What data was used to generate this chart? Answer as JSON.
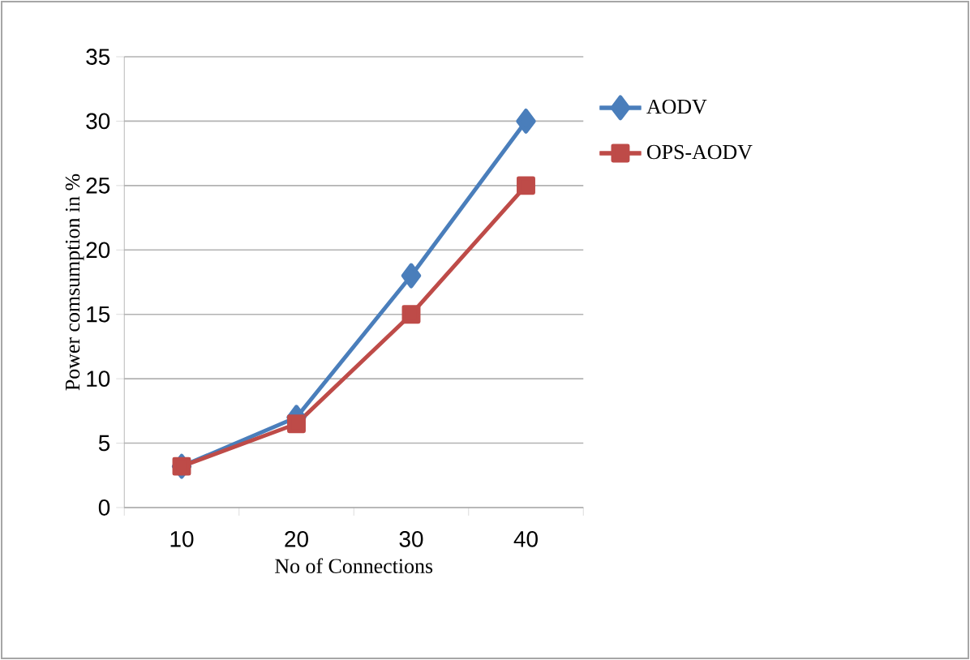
{
  "chart_data": {
    "type": "line",
    "xlabel": "No of Connections",
    "ylabel": "Power comsumption  in %",
    "categories": [
      "10",
      "20",
      "30",
      "40"
    ],
    "series": [
      {
        "name": "AODV",
        "color": "#4a7ebb",
        "marker": "diamond",
        "values": [
          3.2,
          7,
          18,
          30
        ]
      },
      {
        "name": "OPS-AODV",
        "color": "#be4b48",
        "marker": "square",
        "values": [
          3.2,
          6.5,
          15,
          25
        ]
      }
    ],
    "ylim": [
      0,
      35
    ],
    "yticks": [
      0,
      5,
      10,
      15,
      20,
      25,
      30,
      35
    ],
    "grid": "y",
    "legend": "right"
  }
}
